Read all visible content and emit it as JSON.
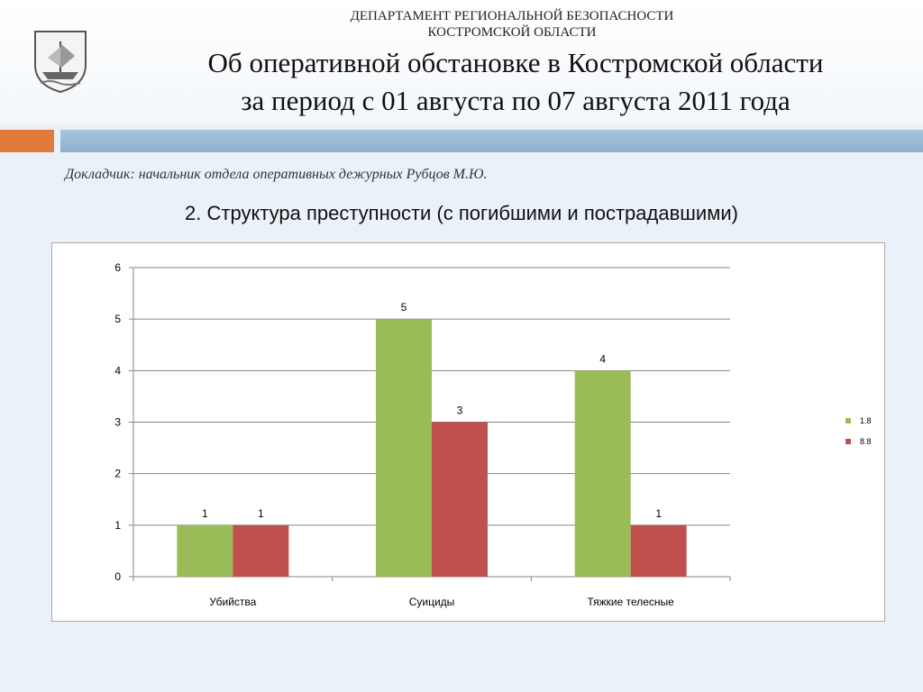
{
  "header": {
    "department_line1": "ДЕПАРТАМЕНТ РЕГИОНАЛЬНОЙ БЕЗОПАСНОСТИ",
    "department_line2": "КОСТРОМСКОЙ ОБЛАСТИ",
    "title_line1": "Об оперативной обстановке в Костромской области",
    "title_line2": "за период с 01 августа по 07 августа 2011 года"
  },
  "reporter": "Докладчик: начальник отдела оперативных дежурных Рубцов М.Ю.",
  "chart_heading": "2. Структура преступности (с погибшими и пострадавшими)",
  "chart_data": {
    "type": "bar",
    "title": "",
    "xlabel": "",
    "ylabel": "",
    "categories": [
      "Убийства",
      "Суициды",
      "Тяжкие телесные"
    ],
    "series": [
      {
        "name": "1.8",
        "values": [
          1,
          5,
          4
        ],
        "color": "#9bbb59"
      },
      {
        "name": "8.8",
        "values": [
          1,
          3,
          1
        ],
        "color": "#c0504d"
      }
    ],
    "ylim": [
      0,
      6
    ],
    "yticks": [
      0,
      1,
      2,
      3,
      4,
      5,
      6
    ],
    "grid": true,
    "legend": "right",
    "data_labels": true
  }
}
